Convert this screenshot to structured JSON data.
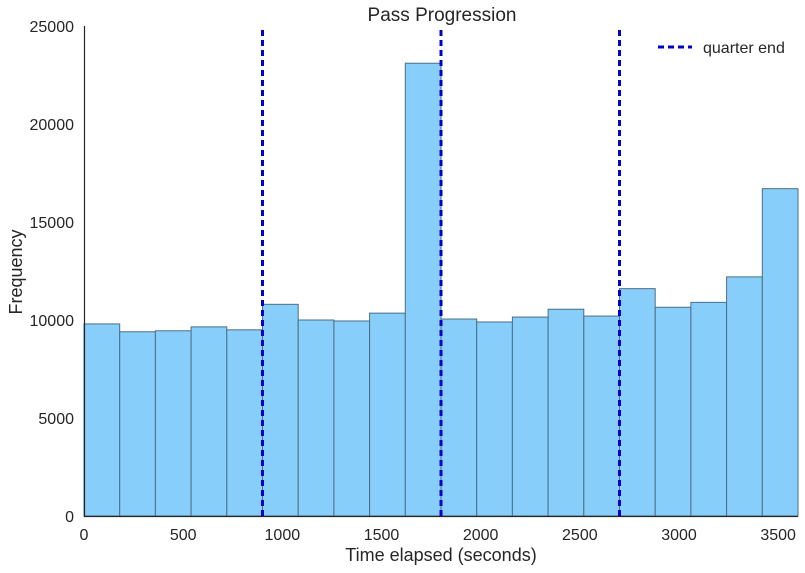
{
  "chart_data": {
    "type": "bar",
    "title": "Pass Progression",
    "xlabel": "Time elapsed (seconds)",
    "ylabel": "Frequency",
    "xlim": [
      0,
      3600
    ],
    "ylim": [
      0,
      25000
    ],
    "xticks": [
      0,
      500,
      1000,
      1500,
      2000,
      2500,
      3000,
      3500
    ],
    "yticks": [
      0,
      5000,
      10000,
      15000,
      20000,
      25000
    ],
    "bin_width": 180,
    "bins": [
      {
        "x0": 0,
        "x1": 180,
        "value": 9800
      },
      {
        "x0": 180,
        "x1": 360,
        "value": 9400
      },
      {
        "x0": 360,
        "x1": 540,
        "value": 9450
      },
      {
        "x0": 540,
        "x1": 720,
        "value": 9650
      },
      {
        "x0": 720,
        "x1": 900,
        "value": 9500
      },
      {
        "x0": 900,
        "x1": 1080,
        "value": 10800
      },
      {
        "x0": 1080,
        "x1": 1260,
        "value": 10000
      },
      {
        "x0": 1260,
        "x1": 1440,
        "value": 9950
      },
      {
        "x0": 1440,
        "x1": 1620,
        "value": 10350
      },
      {
        "x0": 1620,
        "x1": 1800,
        "value": 23100
      },
      {
        "x0": 1800,
        "x1": 1980,
        "value": 10050
      },
      {
        "x0": 1980,
        "x1": 2160,
        "value": 9900
      },
      {
        "x0": 2160,
        "x1": 2340,
        "value": 10150
      },
      {
        "x0": 2340,
        "x1": 2520,
        "value": 10550
      },
      {
        "x0": 2520,
        "x1": 2700,
        "value": 10200
      },
      {
        "x0": 2700,
        "x1": 2880,
        "value": 11600
      },
      {
        "x0": 2880,
        "x1": 3060,
        "value": 10650
      },
      {
        "x0": 3060,
        "x1": 3240,
        "value": 10900
      },
      {
        "x0": 3240,
        "x1": 3420,
        "value": 12200
      },
      {
        "x0": 3420,
        "x1": 3600,
        "value": 16700
      }
    ],
    "reference_lines": {
      "name": "quarter end",
      "x": [
        900,
        1800,
        2700
      ],
      "style": "dashed",
      "color": "#0000cc"
    },
    "bar_color": "#87cefa",
    "bar_edge_color": "#4a6f86",
    "grid": false,
    "legend": {
      "position": "top-right",
      "entries": [
        "quarter end"
      ]
    }
  }
}
